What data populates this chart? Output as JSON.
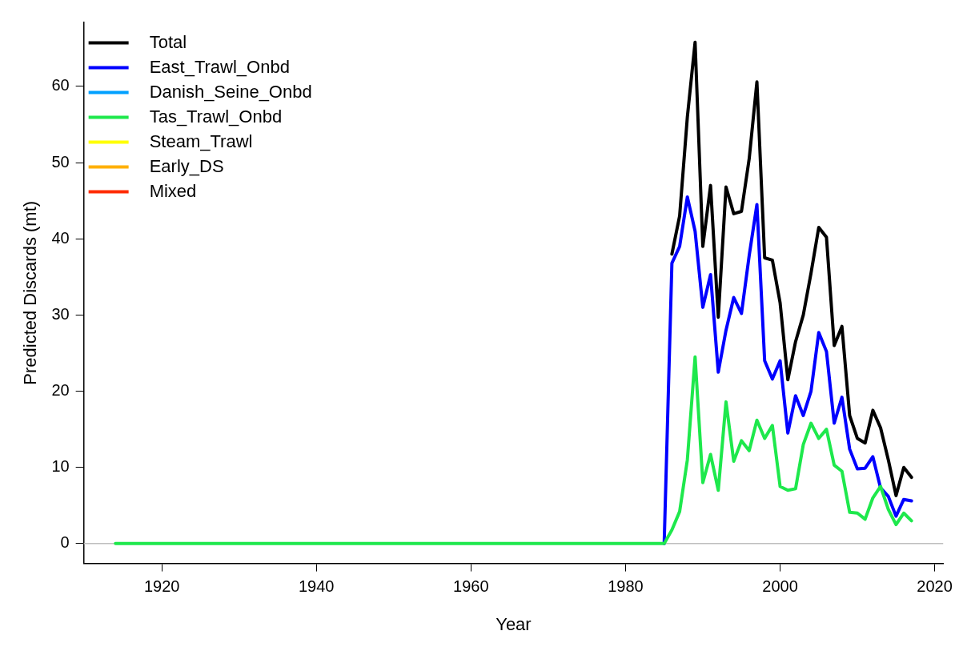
{
  "chart_data": {
    "type": "line",
    "xlabel": "Year",
    "ylabel": "Predicted Discards (mt)",
    "xlim": [
      1909.9,
      2021.1
    ],
    "ylim": [
      -2.6,
      68.4
    ],
    "xticks": [
      1920,
      1940,
      1960,
      1980,
      2000,
      2020
    ],
    "yticks": [
      0,
      10,
      20,
      30,
      40,
      50,
      60
    ],
    "grid": false,
    "legend": "top left",
    "line_style": "solid",
    "marker": "none",
    "ref_lines": [
      {
        "axis": "y",
        "value": 0,
        "color": "#bebebe"
      }
    ],
    "series": [
      {
        "name": "Total",
        "color": "#000000",
        "x": [
          1986,
          1987,
          1988,
          1989,
          1990,
          1991,
          1992,
          1993,
          1994,
          1995,
          1996,
          1997,
          1998,
          1999,
          2000,
          2001,
          2002,
          2003,
          2004,
          2005,
          2006,
          2007,
          2008,
          2009,
          2010,
          2011,
          2012,
          2013,
          2014,
          2015,
          2016,
          2017
        ],
        "values": [
          38,
          43,
          56,
          65.8,
          39,
          47,
          29.7,
          46.8,
          43.3,
          43.6,
          50.5,
          60.6,
          37.5,
          37.2,
          31.6,
          21.5,
          26.5,
          30,
          35.5,
          41.5,
          40.2,
          26,
          28.5,
          16.8,
          13.8,
          13.2,
          17.5,
          15.2,
          11,
          6.3,
          10,
          8.7
        ]
      },
      {
        "name": "East_Trawl_Onbd",
        "color": "#0000ff",
        "x": [
          1985,
          1986,
          1987,
          1988,
          1989,
          1990,
          1991,
          1992,
          1993,
          1994,
          1995,
          1996,
          1997,
          1998,
          1999,
          2000,
          2001,
          2002,
          2003,
          2004,
          2005,
          2006,
          2007,
          2008,
          2009,
          2010,
          2011,
          2012,
          2013,
          2014,
          2015,
          2016,
          2017
        ],
        "values": [
          0,
          36.8,
          39,
          45.5,
          41,
          31,
          35.3,
          22.5,
          28,
          32.3,
          30.2,
          37.8,
          44.5,
          24,
          21.6,
          24,
          14.5,
          19.4,
          16.8,
          20,
          27.7,
          25.2,
          15.8,
          19.2,
          12.4,
          9.8,
          9.9,
          11.4,
          7.3,
          6.2,
          3.6,
          5.8,
          5.6
        ]
      },
      {
        "name": "Danish_Seine_Onbd",
        "color": "#00a0ff"
      },
      {
        "name": "Tas_Trawl_Onbd",
        "color": "#1ee84c",
        "x": [
          1914,
          1915,
          1916,
          1917,
          1918,
          1919,
          1920,
          1921,
          1922,
          1923,
          1924,
          1925,
          1926,
          1927,
          1928,
          1929,
          1930,
          1931,
          1932,
          1933,
          1934,
          1935,
          1936,
          1937,
          1938,
          1939,
          1940,
          1941,
          1942,
          1943,
          1944,
          1945,
          1946,
          1947,
          1948,
          1949,
          1950,
          1951,
          1952,
          1953,
          1954,
          1955,
          1956,
          1957,
          1958,
          1959,
          1960,
          1961,
          1962,
          1963,
          1964,
          1965,
          1966,
          1967,
          1968,
          1969,
          1970,
          1971,
          1972,
          1973,
          1974,
          1975,
          1976,
          1977,
          1978,
          1979,
          1980,
          1981,
          1982,
          1983,
          1984,
          1985,
          1986,
          1987,
          1988,
          1989,
          1990,
          1991,
          1992,
          1993,
          1994,
          1995,
          1996,
          1997,
          1998,
          1999,
          2000,
          2001,
          2002,
          2003,
          2004,
          2005,
          2006,
          2007,
          2008,
          2009,
          2010,
          2011,
          2012,
          2013,
          2014,
          2015,
          2016,
          2017
        ],
        "values": [
          0,
          0,
          0,
          0,
          0,
          0,
          0,
          0,
          0,
          0,
          0,
          0,
          0,
          0,
          0,
          0,
          0,
          0,
          0,
          0,
          0,
          0,
          0,
          0,
          0,
          0,
          0,
          0,
          0,
          0,
          0,
          0,
          0,
          0,
          0,
          0,
          0,
          0,
          0,
          0,
          0,
          0,
          0,
          0,
          0,
          0,
          0,
          0,
          0,
          0,
          0,
          0,
          0,
          0,
          0,
          0,
          0,
          0,
          0,
          0,
          0,
          0,
          0,
          0,
          0,
          0,
          0,
          0,
          0,
          0,
          0,
          0,
          1.8,
          4.2,
          11,
          24.5,
          8,
          11.7,
          7,
          18.6,
          10.8,
          13.5,
          12.2,
          16.2,
          13.8,
          15.5,
          7.5,
          7,
          7.2,
          13,
          15.8,
          13.8,
          15,
          10.3,
          9.5,
          4.1,
          4,
          3.2,
          6,
          7.5,
          4.5,
          2.5,
          4,
          3
        ]
      },
      {
        "name": "Steam_Trawl",
        "color": "#ffff00"
      },
      {
        "name": "Early_DS",
        "color": "#ffb000"
      },
      {
        "name": "Mixed",
        "color": "#ff2a00"
      }
    ]
  }
}
